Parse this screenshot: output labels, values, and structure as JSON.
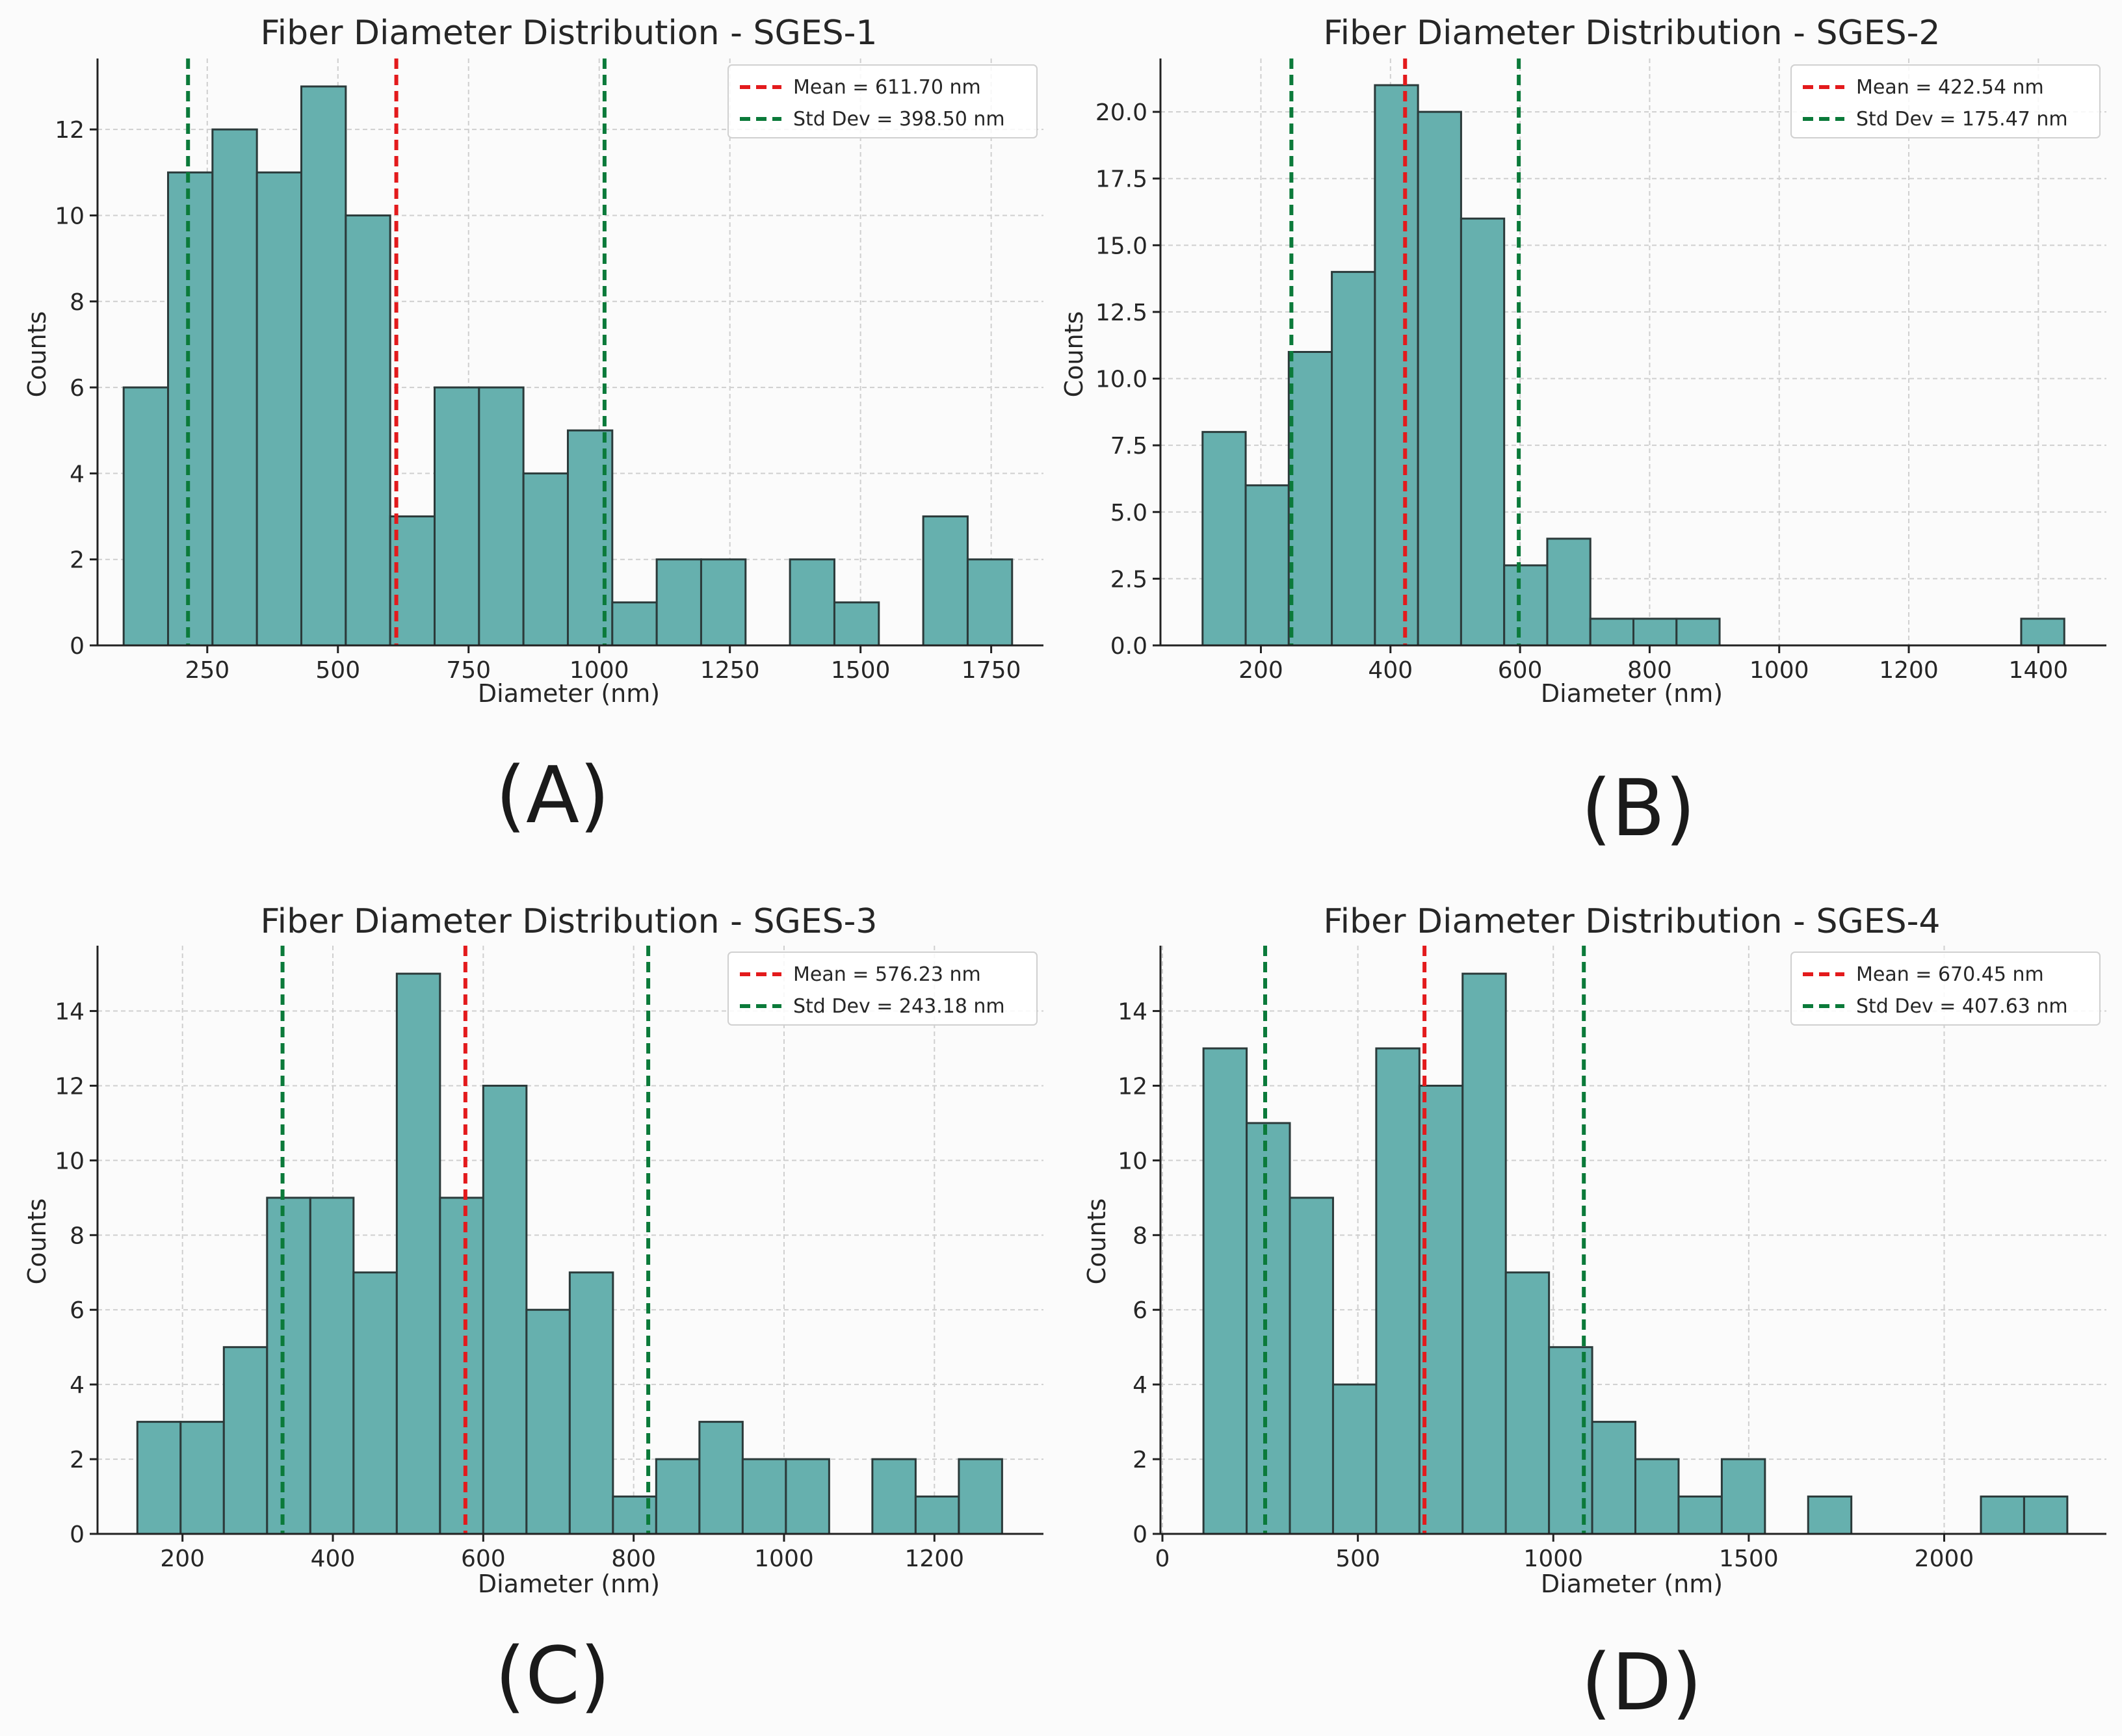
{
  "colors": {
    "bar": "#66b0ae",
    "bar_edge": "#2b3a3a",
    "mean": "#e31a1c",
    "std": "#0b7a3a"
  },
  "chart_data": [
    {
      "type": "bar",
      "panel_label": "(A)",
      "title": "Fiber Diameter Distribution - SGES-1",
      "xlabel": "Diameter (nm)",
      "ylabel": "Counts",
      "xlim": [
        40,
        1850
      ],
      "ylim": [
        0,
        13.65
      ],
      "xticks": [
        250,
        500,
        750,
        1000,
        1250,
        1500,
        1750
      ],
      "yticks": [
        0,
        2,
        4,
        6,
        8,
        10,
        12
      ],
      "ytick_labels": [
        "0",
        "2",
        "4",
        "6",
        "8",
        "10",
        "12"
      ],
      "bin_start": 90,
      "bin_width": 85,
      "counts": [
        6,
        11,
        12,
        11,
        13,
        10,
        3,
        6,
        6,
        4,
        5,
        1,
        2,
        2,
        0,
        2,
        1,
        0,
        3,
        2
      ],
      "mean_line": 611.7,
      "std_lines": [
        213.2,
        1010.2
      ],
      "legend": [
        "Mean = 611.70 nm",
        "Std Dev = 398.50 nm"
      ]
    },
    {
      "type": "bar",
      "panel_label": "(B)",
      "title": "Fiber Diameter Distribution - SGES-2",
      "xlabel": "Diameter (nm)",
      "ylabel": "Counts",
      "xlim": [
        45,
        1505
      ],
      "ylim": [
        0,
        22.0
      ],
      "xticks": [
        200,
        400,
        600,
        800,
        1000,
        1200,
        1400
      ],
      "yticks": [
        0,
        2.5,
        5,
        7.5,
        10,
        12.5,
        15,
        17.5,
        20
      ],
      "ytick_labels": [
        "0.0",
        "2.5",
        "5.0",
        "7.5",
        "10.0",
        "12.5",
        "15.0",
        "17.5",
        "20.0"
      ],
      "bin_start": 110,
      "bin_width": 66.5,
      "counts": [
        8,
        6,
        11,
        14,
        21,
        20,
        16,
        3,
        4,
        1,
        1,
        1,
        0,
        0,
        0,
        0,
        0,
        0,
        0,
        1
      ],
      "mean_line": 422.54,
      "std_lines": [
        247.07,
        598.01
      ],
      "legend": [
        "Mean = 422.54 nm",
        "Std Dev = 175.47 nm"
      ]
    },
    {
      "type": "bar",
      "panel_label": "(C)",
      "title": "Fiber Diameter Distribution - SGES-3",
      "xlabel": "Diameter (nm)",
      "ylabel": "Counts",
      "xlim": [
        87,
        1345
      ],
      "ylim": [
        0,
        15.75
      ],
      "xticks": [
        200,
        400,
        600,
        800,
        1000,
        1200
      ],
      "yticks": [
        0,
        2,
        4,
        6,
        8,
        10,
        12,
        14
      ],
      "ytick_labels": [
        "0",
        "2",
        "4",
        "6",
        "8",
        "10",
        "12",
        "14"
      ],
      "bin_start": 140,
      "bin_width": 57.5,
      "counts": [
        3,
        3,
        5,
        9,
        9,
        7,
        15,
        9,
        12,
        6,
        7,
        1,
        2,
        3,
        2,
        2,
        0,
        2,
        1,
        2
      ],
      "mean_line": 576.23,
      "std_lines": [
        333.05,
        819.41
      ],
      "legend": [
        "Mean = 576.23 nm",
        "Std Dev = 243.18 nm"
      ]
    },
    {
      "type": "bar",
      "panel_label": "(D)",
      "title": "Fiber Diameter Distribution - SGES-4",
      "xlabel": "Diameter (nm)",
      "ylabel": "Counts",
      "xlim": [
        -5,
        2415
      ],
      "ylim": [
        0,
        15.75
      ],
      "xticks": [
        0,
        500,
        1000,
        1500,
        2000
      ],
      "yticks": [
        0,
        2,
        4,
        6,
        8,
        10,
        12,
        14
      ],
      "ytick_labels": [
        "0",
        "2",
        "4",
        "6",
        "8",
        "10",
        "12",
        "14"
      ],
      "bin_start": 105,
      "bin_width": 110.5,
      "counts": [
        13,
        11,
        9,
        4,
        13,
        12,
        15,
        7,
        5,
        3,
        2,
        1,
        2,
        0,
        1,
        0,
        0,
        0,
        1,
        1
      ],
      "mean_line": 670.45,
      "std_lines": [
        262.82,
        1078.08
      ],
      "legend": [
        "Mean = 670.45 nm",
        "Std Dev = 407.63 nm"
      ]
    }
  ]
}
